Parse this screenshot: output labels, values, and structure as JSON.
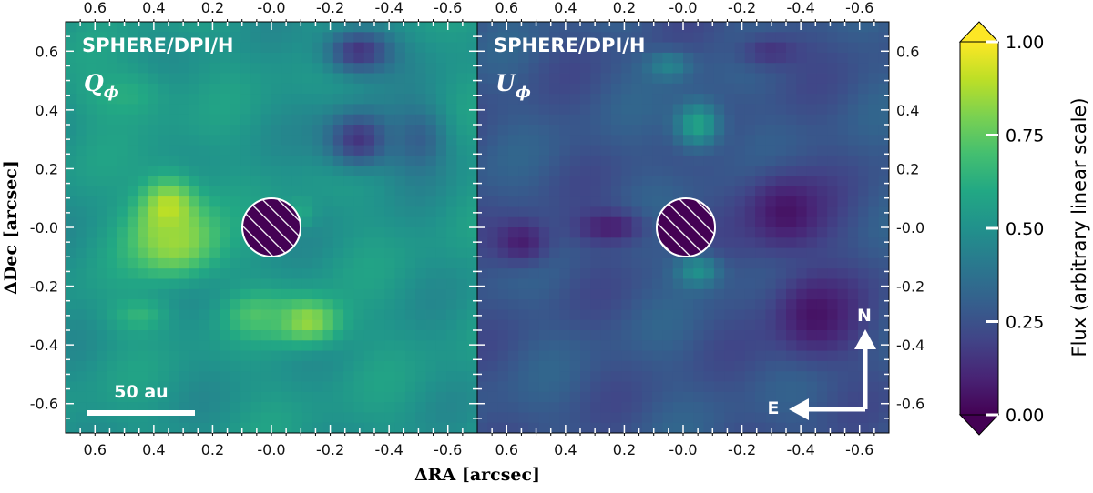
{
  "chart_data": {
    "type": "heatmap",
    "panels": [
      {
        "instrument": "SPHERE/DPI/H",
        "stokes_main": "Q",
        "stokes_sub": "ϕ"
      },
      {
        "instrument": "SPHERE/DPI/H",
        "stokes_main": "U",
        "stokes_sub": "ϕ"
      }
    ],
    "x_ticks": [
      "0.6",
      "0.4",
      "0.2",
      "-0.0",
      "-0.2",
      "-0.4",
      "-0.6"
    ],
    "x_tick_values": [
      0.6,
      0.4,
      0.2,
      0.0,
      -0.2,
      -0.4,
      -0.6
    ],
    "y_ticks": [
      "0.6",
      "0.4",
      "0.2",
      "-0.0",
      "-0.2",
      "-0.4",
      "-0.6"
    ],
    "y_tick_values": [
      0.6,
      0.4,
      0.2,
      0.0,
      -0.2,
      -0.4,
      -0.6
    ],
    "xlim": [
      0.7,
      -0.7
    ],
    "ylim": [
      -0.7,
      0.7
    ],
    "xlabel": "ΔRA [arcsec]",
    "ylabel": "ΔDec [arcsec]",
    "coronagraph_mask_radius_arcsec": 0.1,
    "scale_bar_label": "50 au",
    "scale_bar_length_arcsec": 0.34,
    "compass": {
      "north": "N",
      "east": "E"
    },
    "colorbar": {
      "label": "Flux (arbitrary linear scale)",
      "range": [
        0.0,
        1.0
      ],
      "ticks": [
        "0.00",
        "0.25",
        "0.50",
        "0.75",
        "1.00"
      ],
      "tick_values": [
        0.0,
        0.25,
        0.5,
        0.75,
        1.0
      ],
      "colormap": "viridis",
      "extend": "both",
      "colors": [
        "#440154",
        "#482475",
        "#414487",
        "#355f8d",
        "#2a788e",
        "#21918c",
        "#22a884",
        "#44bf70",
        "#7ad151",
        "#bddf26",
        "#fde725"
      ]
    },
    "qphi_blobs": [
      {
        "x": 0.35,
        "y": 0.05,
        "level": 0.95,
        "sx": 0.1,
        "sy": 0.12
      },
      {
        "x": 0.33,
        "y": -0.05,
        "level": 0.85,
        "sx": 0.15,
        "sy": 0.12
      },
      {
        "x": -0.12,
        "y": -0.32,
        "level": 0.85,
        "sx": 0.12,
        "sy": 0.08
      },
      {
        "x": 0.05,
        "y": -0.3,
        "level": 0.72,
        "sx": 0.1,
        "sy": 0.07
      },
      {
        "x": 0.45,
        "y": -0.3,
        "level": 0.65,
        "sx": 0.1,
        "sy": 0.06
      },
      {
        "x": 0.5,
        "y": 0.45,
        "level": 0.62,
        "sx": 0.16,
        "sy": 0.1
      },
      {
        "x": -0.1,
        "y": 0.05,
        "level": 0.6,
        "sx": 0.05,
        "sy": 0.05
      },
      {
        "x": -0.3,
        "y": 0.3,
        "level": 0.15,
        "sx": 0.12,
        "sy": 0.1
      },
      {
        "x": -0.3,
        "y": 0.6,
        "level": 0.15,
        "sx": 0.12,
        "sy": 0.08
      },
      {
        "x": -0.5,
        "y": 0.3,
        "level": 0.3,
        "sx": 0.1,
        "sy": 0.12
      }
    ],
    "uphi_blobs": [
      {
        "x": -0.35,
        "y": 0.05,
        "level": 0.05,
        "sx": 0.15,
        "sy": 0.14
      },
      {
        "x": -0.45,
        "y": -0.3,
        "level": 0.05,
        "sx": 0.15,
        "sy": 0.15
      },
      {
        "x": 0.55,
        "y": -0.05,
        "level": 0.08,
        "sx": 0.1,
        "sy": 0.08
      },
      {
        "x": 0.25,
        "y": 0.0,
        "level": 0.08,
        "sx": 0.12,
        "sy": 0.06
      },
      {
        "x": -0.05,
        "y": 0.35,
        "level": 0.58,
        "sx": 0.08,
        "sy": 0.08
      },
      {
        "x": -0.05,
        "y": -0.15,
        "level": 0.5,
        "sx": 0.08,
        "sy": 0.06
      },
      {
        "x": -0.3,
        "y": 0.6,
        "level": 0.15,
        "sx": 0.12,
        "sy": 0.06
      },
      {
        "x": 0.05,
        "y": 0.55,
        "level": 0.45,
        "sx": 0.08,
        "sy": 0.05
      }
    ]
  }
}
